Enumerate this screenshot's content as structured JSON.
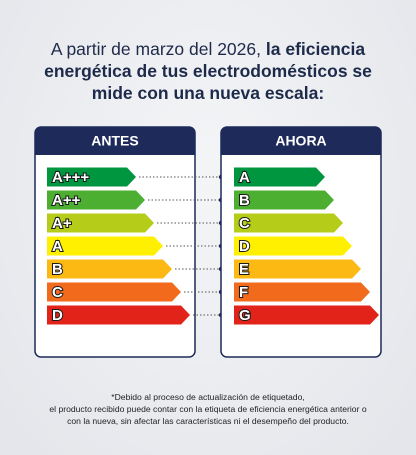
{
  "header": {
    "title_normal": "A partir de marzo del 2026,",
    "title_bold": "la eficiencia energética de tus electrodomésticos se mide con una nueva escala:"
  },
  "panels": [
    {
      "title": "ANTES",
      "classes": [
        "A+++",
        "A++",
        "A+",
        "A",
        "B",
        "C",
        "D"
      ]
    },
    {
      "title": "AHORA",
      "classes": [
        "A",
        "B",
        "C",
        "D",
        "E",
        "F",
        "G"
      ]
    }
  ],
  "footnote": [
    "*Debido al proceso de actualización de etiquetado,",
    "el producto recibido puede contar con la etiqueta de eficiencia energética anterior o",
    "con la nueva, sin afectar las características ni el desempeño del producto."
  ]
}
